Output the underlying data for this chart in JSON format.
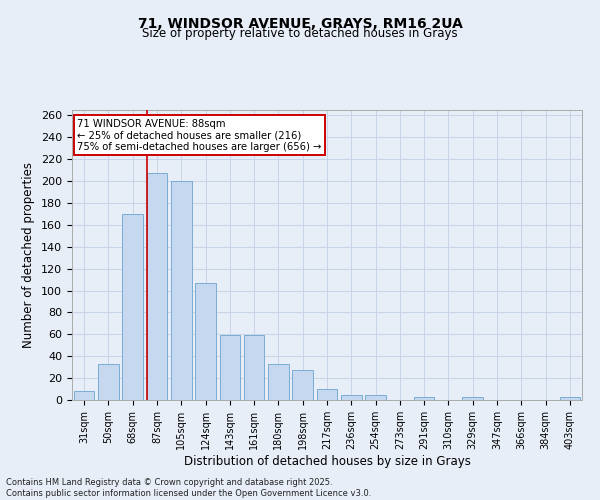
{
  "title_line1": "71, WINDSOR AVENUE, GRAYS, RM16 2UA",
  "title_line2": "Size of property relative to detached houses in Grays",
  "xlabel": "Distribution of detached houses by size in Grays",
  "ylabel": "Number of detached properties",
  "categories": [
    "31sqm",
    "50sqm",
    "68sqm",
    "87sqm",
    "105sqm",
    "124sqm",
    "143sqm",
    "161sqm",
    "180sqm",
    "198sqm",
    "217sqm",
    "236sqm",
    "254sqm",
    "273sqm",
    "291sqm",
    "310sqm",
    "329sqm",
    "347sqm",
    "366sqm",
    "384sqm",
    "403sqm"
  ],
  "values": [
    8,
    33,
    170,
    207,
    200,
    107,
    59,
    59,
    33,
    27,
    10,
    5,
    5,
    0,
    3,
    0,
    3,
    0,
    0,
    0,
    3
  ],
  "bar_color": "#c5d8f0",
  "bar_edge_color": "#7aadd4",
  "grid_color": "#c8d4e8",
  "background_color": "#e8eef8",
  "vline_color": "#cc0000",
  "vline_pos": 3.0,
  "annotation_text": "71 WINDSOR AVENUE: 88sqm\n← 25% of detached houses are smaller (216)\n75% of semi-detached houses are larger (656) →",
  "annotation_box_facecolor": "#ffffff",
  "annotation_box_edgecolor": "#cc0000",
  "ylim_max": 265,
  "yticks": [
    0,
    20,
    40,
    60,
    80,
    100,
    120,
    140,
    160,
    180,
    200,
    220,
    240,
    260
  ],
  "footer_line1": "Contains HM Land Registry data © Crown copyright and database right 2025.",
  "footer_line2": "Contains public sector information licensed under the Open Government Licence v3.0."
}
